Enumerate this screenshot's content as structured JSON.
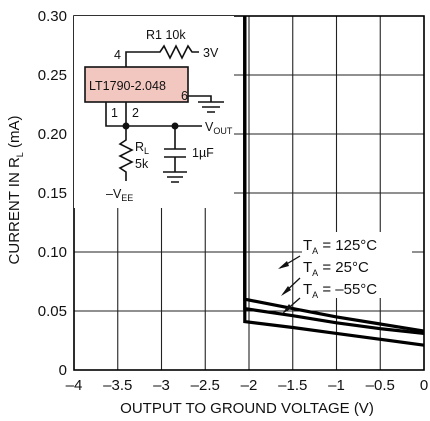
{
  "chart_data": {
    "type": "line",
    "xlabel": "OUTPUT TO GROUND VOLTAGE (V)",
    "ylabel_main": "CURRENT IN R",
    "ylabel_sub": "L",
    "ylabel_unit": " (mA)",
    "xlim": [
      -4,
      0
    ],
    "ylim": [
      0,
      0.3
    ],
    "grid": true,
    "x_ticks": [
      {
        "value": -4,
        "label": "–4"
      },
      {
        "value": -3.5,
        "label": "–3.5"
      },
      {
        "value": -3,
        "label": "–3"
      },
      {
        "value": -2.5,
        "label": "–2.5"
      },
      {
        "value": -2,
        "label": "–2"
      },
      {
        "value": -1.5,
        "label": "–1.5"
      },
      {
        "value": -1,
        "label": "–1"
      },
      {
        "value": -0.5,
        "label": "–0.5"
      },
      {
        "value": 0,
        "label": "0"
      }
    ],
    "y_ticks": [
      {
        "value": 0,
        "label": "0"
      },
      {
        "value": 0.05,
        "label": "0.05"
      },
      {
        "value": 0.1,
        "label": "0.10"
      },
      {
        "value": 0.15,
        "label": "0.15"
      },
      {
        "value": 0.2,
        "label": "0.20"
      },
      {
        "value": 0.25,
        "label": "0.25"
      },
      {
        "value": 0.3,
        "label": "0.30"
      }
    ],
    "series": [
      {
        "name": "T_A = 125°C",
        "points": [
          [
            -2.048,
            0.3
          ],
          [
            -2.048,
            0.06
          ],
          [
            -1.5,
            0.052
          ],
          [
            -1.0,
            0.045
          ],
          [
            -0.5,
            0.039
          ],
          [
            0,
            0.033
          ]
        ]
      },
      {
        "name": "T_A = 25°C",
        "points": [
          [
            -2.048,
            0.3
          ],
          [
            -2.048,
            0.052
          ],
          [
            -1.5,
            0.046
          ],
          [
            -1.0,
            0.04
          ],
          [
            -0.5,
            0.035
          ],
          [
            0,
            0.031
          ]
        ]
      },
      {
        "name": "T_A = –55°C",
        "points": [
          [
            -2.048,
            0.3
          ],
          [
            -2.048,
            0.041
          ],
          [
            -1.5,
            0.036
          ],
          [
            -1.0,
            0.031
          ],
          [
            -0.5,
            0.026
          ],
          [
            0,
            0.021
          ]
        ]
      }
    ],
    "annotations": [
      {
        "main": "T",
        "sub": "A",
        "rest": " = 125°C"
      },
      {
        "main": "T",
        "sub": "A",
        "rest": " = 25°C"
      },
      {
        "main": "T",
        "sub": "A",
        "rest": " = –55°C"
      }
    ]
  },
  "circuit": {
    "r1_label": "R1 10k",
    "supply_label": "3V",
    "chip_label": "LT1790-2.048",
    "pin4": "4",
    "pin6": "6",
    "pin1": "1",
    "pin2": "2",
    "vout_main": "V",
    "vout_sub": "OUT",
    "rl_main": "R",
    "rl_sub": "L",
    "rl_value": "5k",
    "cap_value": "1µF",
    "vee_main": "–V",
    "vee_sub": "EE",
    "chip_fill": "#f2c7c0"
  }
}
